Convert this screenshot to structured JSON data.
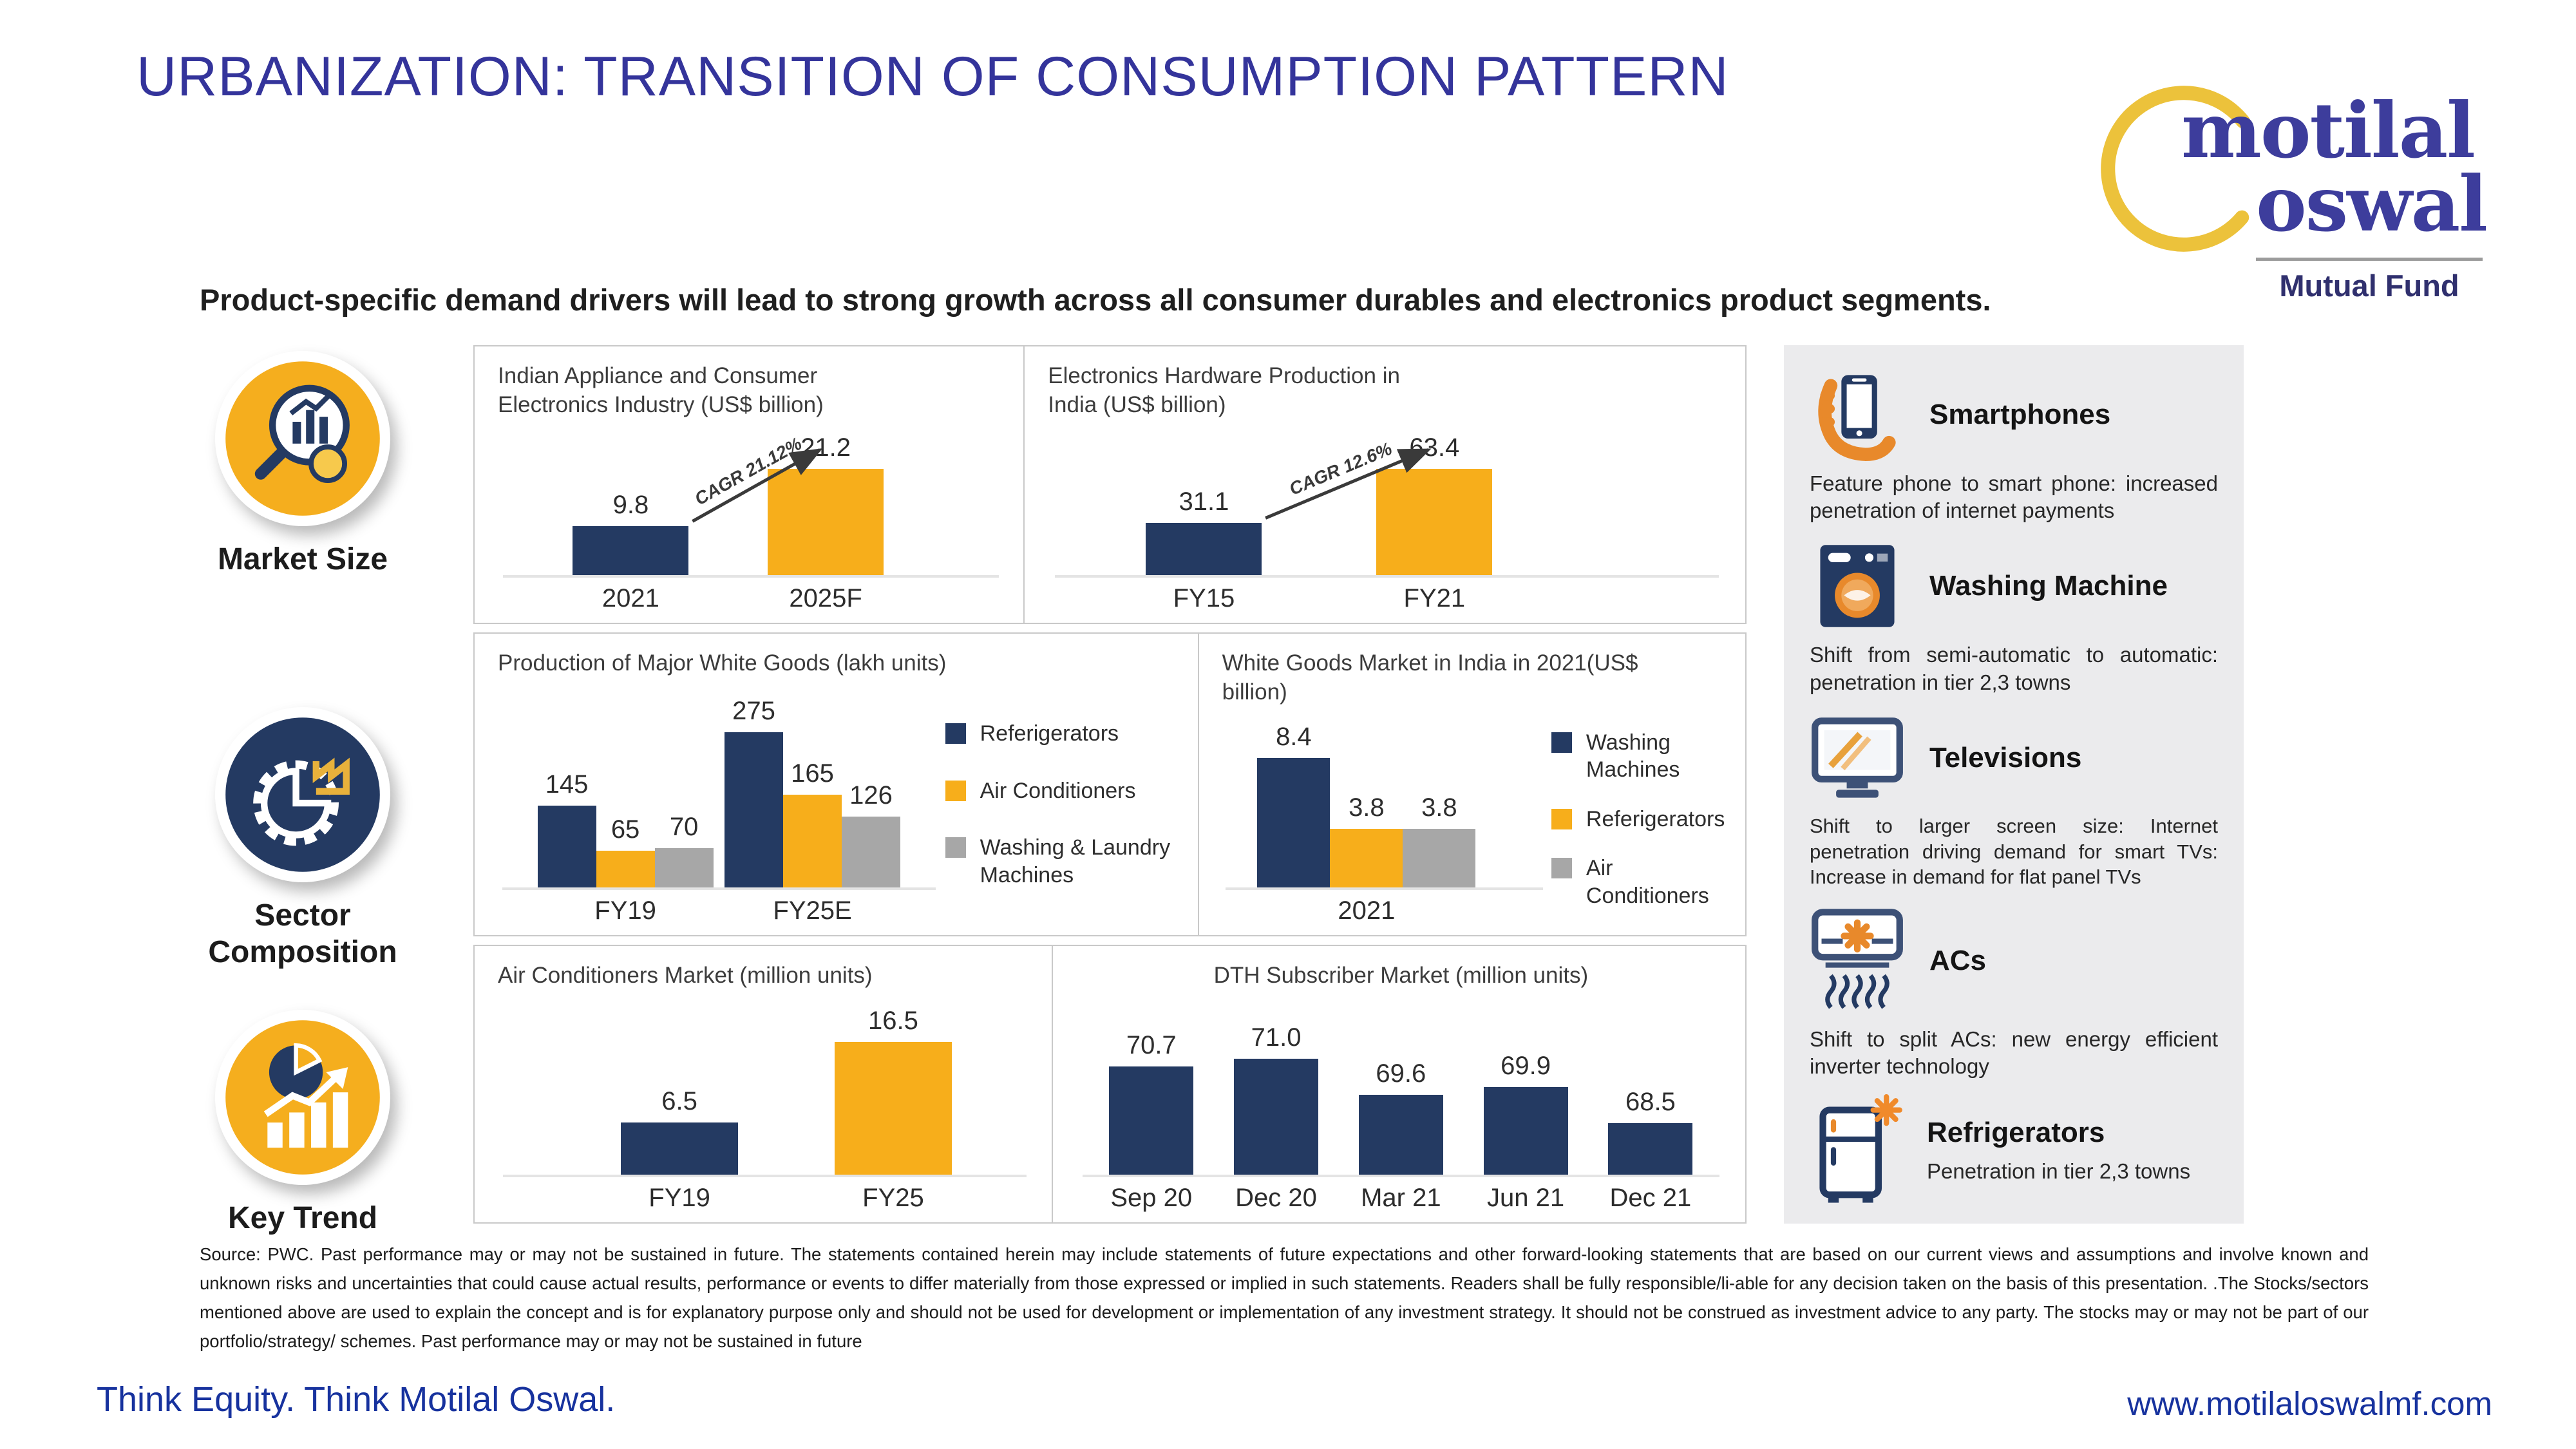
{
  "header": {
    "title": "URBANIZATION: TRANSITION OF CONSUMPTION PATTERN",
    "headline": "Product-specific demand drivers will lead to strong growth across all consumer durables and electronics product segments."
  },
  "logo": {
    "line1": "motilal",
    "line2": "oswal",
    "subtitle": "Mutual Fund"
  },
  "left_nav": {
    "items": [
      {
        "id": "market-size",
        "label": "Market Size",
        "icon": "market-size-icon"
      },
      {
        "id": "sector-composition",
        "label": "Sector Composition",
        "icon": "sector-composition-icon"
      },
      {
        "id": "key-trend",
        "label": "Key Trend",
        "icon": "key-trend-icon"
      }
    ]
  },
  "sidebar": {
    "items": [
      {
        "icon": "smartphone-icon",
        "title": "Smartphones",
        "text": "Feature phone to smart phone: increased penetration of internet payments"
      },
      {
        "icon": "washing-machine-icon",
        "title": "Washing Machine",
        "text": "Shift from semi-automatic to automatic: penetration in tier 2,3 towns"
      },
      {
        "icon": "television-icon",
        "title": "Televisions",
        "text": "Shift to larger screen size: Internet penetration driving demand for smart TVs: Increase in demand for flat panel TVs"
      },
      {
        "icon": "ac-icon",
        "title": "ACs",
        "text": "Shift to split ACs: new energy efficient inverter technology"
      },
      {
        "icon": "refrigerator-icon",
        "title": "Refrigerators",
        "text": "Penetration in tier 2,3 towns"
      }
    ]
  },
  "source": {
    "text": "Source: PWC. Past performance may or may not be sustained in future. The statements contained herein may include statements of future expectations and other forward-looking statements that are based on our current views and assumptions and involve known and unknown risks and uncertainties that could cause actual results, performance or events to differ materially from those expressed or implied in such statements. Readers shall be fully responsible/li-able for any decision taken on the basis of this presentation. .The Stocks/sectors mentioned above are used to explain the concept and is for explanatory purpose only and should not be used for development or implementation of any investment strategy. It should not be construed as investment advice to any party. The stocks may or may not be part of our portfolio/strategy/ schemes. Past performance may or may not be sustained in future"
  },
  "footer": {
    "left": "Think Equity. Think Motilal Oswal.",
    "right": "www.motilaloswalmf.com"
  },
  "colors": {
    "navy": "#243A62",
    "yellow": "#F7AE1B",
    "gray": "#A7A7A7",
    "title_blue": "#34349B",
    "footer_blue": "#17329E",
    "sidebar_bg": "#EBEBED",
    "panel_border": "#C9C9C9",
    "logo_indigo": "#3D3D9C",
    "logo_ring_yellow": "#ECC23B",
    "icon_orange": "#E8892B"
  },
  "chart_data": [
    {
      "id": "appliance_industry",
      "type": "bar",
      "title": "Indian Appliance and Consumer Electronics Industry (US$ billion)",
      "categories": [
        "2021",
        "2025F"
      ],
      "values": [
        9.8,
        21.2
      ],
      "value_labels": [
        "9.8",
        "21.2"
      ],
      "bar_colors": [
        "navy",
        "yellow"
      ],
      "annotation": "CAGR 21.12%",
      "xlabel": "",
      "ylabel": "",
      "ylim": [
        0,
        23.5
      ],
      "grid": false,
      "legend_position": null
    },
    {
      "id": "electronics_hardware",
      "type": "bar",
      "title": "Electronics Hardware Production in India (US$ billion)",
      "categories": [
        "FY15",
        "FY21"
      ],
      "values": [
        31.1,
        63.4
      ],
      "value_labels": [
        "31.1",
        "63.4"
      ],
      "bar_colors": [
        "navy",
        "yellow"
      ],
      "annotation": "CAGR 12.6%",
      "xlabel": "",
      "ylabel": "",
      "ylim": [
        0,
        70.5
      ],
      "grid": false,
      "legend_position": null
    },
    {
      "id": "white_goods_production",
      "type": "bar-grouped",
      "title": "Production of Major White Goods (lakh units)",
      "categories": [
        "FY19",
        "FY25E"
      ],
      "series": [
        {
          "name": "Referigerators",
          "color": "navy",
          "values": [
            145,
            275
          ],
          "value_labels": [
            "145",
            "275"
          ]
        },
        {
          "name": "Air Conditioners",
          "color": "yellow",
          "values": [
            65,
            165
          ],
          "value_labels": [
            "65",
            "165"
          ]
        },
        {
          "name": "Washing & Laundry Machines",
          "color": "gray",
          "values": [
            70,
            126
          ],
          "value_labels": [
            "70",
            "126"
          ]
        }
      ],
      "xlabel": "",
      "ylabel": "",
      "ylim": [
        0,
        305
      ],
      "grid": false,
      "legend_position": "right"
    },
    {
      "id": "white_goods_market",
      "type": "bar-grouped",
      "title": "White Goods Market in India in 2021(US$ billion)",
      "categories": [
        "2021"
      ],
      "series": [
        {
          "name": "Washing Machines",
          "color": "navy",
          "values": [
            8.4
          ],
          "value_labels": [
            "8.4"
          ]
        },
        {
          "name": "Referigerators",
          "color": "yellow",
          "values": [
            3.8
          ],
          "value_labels": [
            "3.8"
          ]
        },
        {
          "name": "Air Conditioners",
          "color": "gray",
          "values": [
            3.8
          ],
          "value_labels": [
            "3.8"
          ]
        }
      ],
      "xlabel": "",
      "ylabel": "",
      "ylim": [
        0,
        9.3
      ],
      "grid": false,
      "legend_position": "right"
    },
    {
      "id": "ac_market",
      "type": "bar",
      "title": "Air Conditioners Market (million units)",
      "categories": [
        "FY19",
        "FY25"
      ],
      "values": [
        6.5,
        16.5
      ],
      "value_labels": [
        "6.5",
        "16.5"
      ],
      "bar_colors": [
        "navy",
        "yellow"
      ],
      "annotation": null,
      "xlabel": "",
      "ylabel": "",
      "ylim": [
        0,
        18.3
      ],
      "grid": false,
      "legend_position": null
    },
    {
      "id": "dth_subscribers",
      "type": "bar",
      "title": "DTH Subscriber Market (million units)",
      "title_align": "center",
      "categories": [
        "Sep 20",
        "Dec 20",
        "Mar 21",
        "Jun 21",
        "Dec 21"
      ],
      "values": [
        70.7,
        71.0,
        69.6,
        69.9,
        68.5
      ],
      "value_labels": [
        "70.7",
        "71.0",
        "69.6",
        "69.9",
        "68.5"
      ],
      "bar_colors": [
        "navy",
        "navy",
        "navy",
        "navy",
        "navy"
      ],
      "annotation": null,
      "xlabel": "",
      "ylabel": "",
      "ylim": [
        66.5,
        72.2
      ],
      "grid": false,
      "legend_position": null
    }
  ]
}
